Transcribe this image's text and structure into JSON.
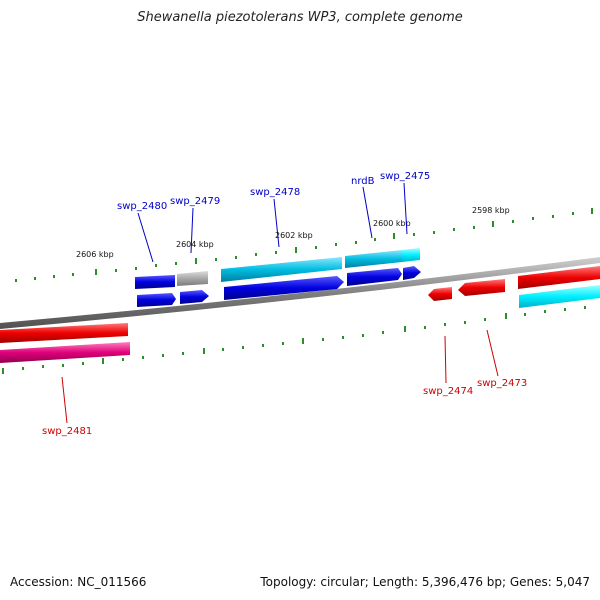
{
  "title": "Shewanella piezotolerans WP3, complete genome",
  "footer": {
    "accession": "Accession: NC_011566",
    "summary": "Topology: circular; Length: 5,396,476 bp; Genes: 5,047"
  },
  "scale_labels": [
    "2606 kbp",
    "2604 kbp",
    "2602 kbp",
    "2600 kbp",
    "2598 kbp"
  ],
  "gene_labels": {
    "top": [
      "swp_2480",
      "swp_2479",
      "swp_2478",
      "nrdB",
      "swp_2475"
    ],
    "bottom": [
      "swp_2481",
      "swp_2474",
      "swp_2473"
    ]
  },
  "colors": {
    "blue": "#0000e0",
    "cyan": "#00c8e6",
    "gray": "#a8a8a8",
    "red": "#ee0000",
    "magenta": "#e0007a",
    "backbone": "#808080",
    "tick": "#2e8b2e"
  }
}
